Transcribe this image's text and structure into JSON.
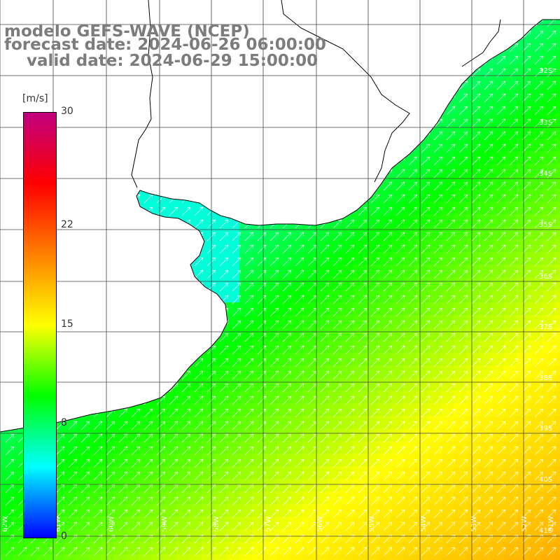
{
  "header": {
    "model_line": "modelo GEFS-WAVE (NCEP)",
    "forecast_line": "forecast date: 2024-06-26 06:00:00",
    "valid_line": "    valid date: 2024-06-29 15:00:00"
  },
  "colorbar": {
    "unit": "[m/s]",
    "ticks": [
      {
        "label": "30",
        "value": 30
      },
      {
        "label": "22",
        "value": 22
      },
      {
        "label": "15",
        "value": 15
      },
      {
        "label": "8",
        "value": 8
      },
      {
        "label": "0",
        "value": 0
      }
    ],
    "colors": [
      "#0000ff",
      "#00ffff",
      "#00ff00",
      "#ffff00",
      "#ff8000",
      "#ff0000",
      "#c00080"
    ]
  },
  "map": {
    "lat_labels": [
      "32S",
      "33S",
      "34S",
      "35S",
      "36S",
      "37S",
      "38S",
      "39S",
      "40S",
      "41S"
    ],
    "lon_labels": [
      "62W",
      "61W",
      "60W",
      "59W",
      "58W",
      "57W",
      "56W",
      "55W",
      "54W",
      "53W",
      "52W",
      "51W"
    ],
    "land_color": "#ffffff",
    "grid_color": "#444444",
    "coast_color": "#000000",
    "field": "wind speed",
    "field_range_ms": [
      8,
      22
    ]
  }
}
